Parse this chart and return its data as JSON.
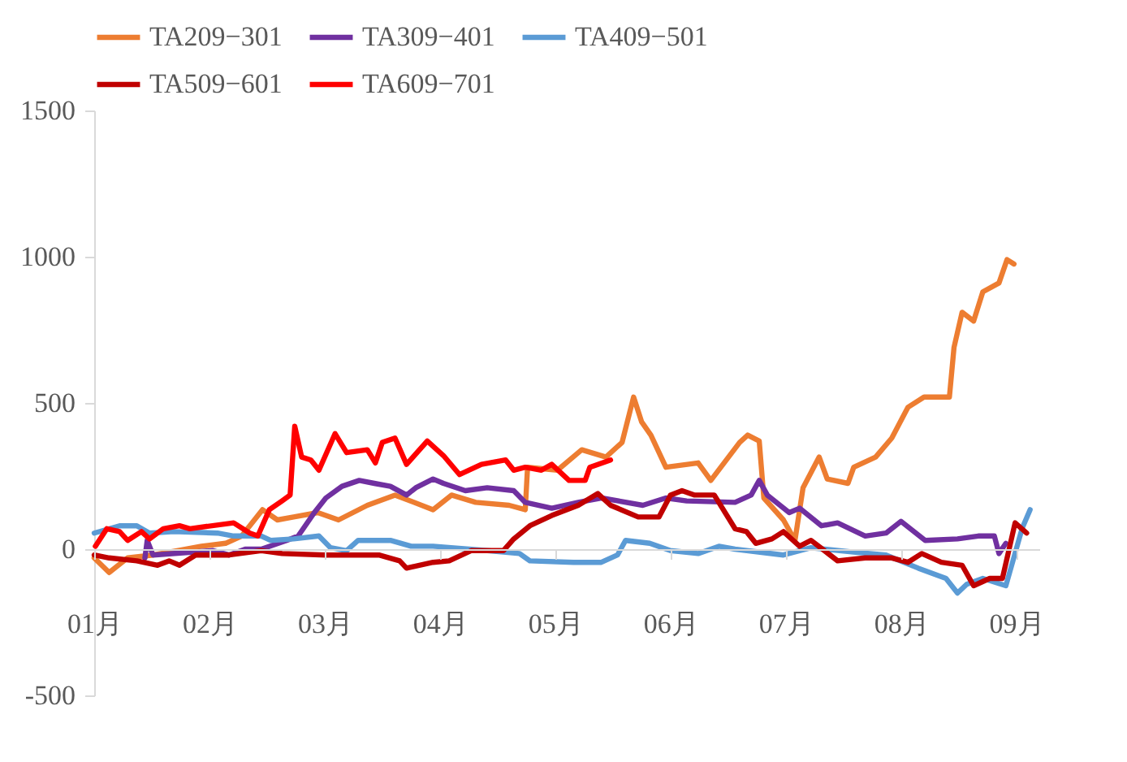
{
  "chart_data": {
    "type": "line",
    "xlim": [
      1,
      9.2
    ],
    "xticks": [
      {
        "value": 1,
        "label": "01月"
      },
      {
        "value": 2,
        "label": "02月"
      },
      {
        "value": 3,
        "label": "03月"
      },
      {
        "value": 4,
        "label": "04月"
      },
      {
        "value": 5,
        "label": "05月"
      },
      {
        "value": 6,
        "label": "06月"
      },
      {
        "value": 7,
        "label": "07月"
      },
      {
        "value": 8,
        "label": "08月"
      },
      {
        "value": 9,
        "label": "09月"
      }
    ],
    "ylim": [
      -500,
      1500
    ],
    "yticks": [
      -500,
      0,
      500,
      1000,
      1500
    ],
    "grid": false,
    "legend": "top",
    "line_style": "solid",
    "marker": "none",
    "series": [
      {
        "name": "TA209−301",
        "color": "#ed7d31",
        "x": [
          1.0,
          1.13,
          1.29,
          1.51,
          1.72,
          1.93,
          2.14,
          2.28,
          2.46,
          2.59,
          2.73,
          2.94,
          3.12,
          3.37,
          3.61,
          3.94,
          4.1,
          4.31,
          4.6,
          4.74,
          4.76,
          5.02,
          5.23,
          5.44,
          5.58,
          5.68,
          5.75,
          5.83,
          5.96,
          6.24,
          6.35,
          6.6,
          6.67,
          6.77,
          6.81,
          6.98,
          7.08,
          7.15,
          7.29,
          7.36,
          7.54,
          7.59,
          7.78,
          7.92,
          8.06,
          8.2,
          8.42,
          8.46,
          8.53,
          8.63,
          8.67,
          8.71,
          8.85,
          8.92,
          8.98
        ],
        "values": [
          -30,
          -80,
          -30,
          -20,
          -5,
          10,
          20,
          45,
          135,
          100,
          110,
          125,
          100,
          150,
          185,
          135,
          185,
          160,
          150,
          135,
          280,
          270,
          340,
          315,
          365,
          520,
          435,
          390,
          280,
          295,
          235,
          365,
          390,
          370,
          175,
          100,
          30,
          210,
          315,
          240,
          225,
          280,
          315,
          380,
          485,
          520,
          520,
          690,
          810,
          780,
          830,
          880,
          910,
          990,
          975
        ]
      },
      {
        "name": "TA309−401",
        "color": "#7030a0",
        "x": [
          1.44,
          1.46,
          1.51,
          2.03,
          2.17,
          2.31,
          2.45,
          2.67,
          2.77,
          2.91,
          3.01,
          3.15,
          3.3,
          3.43,
          3.57,
          3.71,
          3.79,
          3.94,
          4.03,
          4.22,
          4.41,
          4.64,
          4.74,
          4.97,
          5.2,
          5.4,
          5.76,
          5.96,
          6.14,
          6.56,
          6.7,
          6.77,
          6.84,
          7.03,
          7.12,
          7.31,
          7.45,
          7.69,
          7.87,
          8.0,
          8.21,
          8.49,
          8.67,
          8.81,
          8.85,
          8.91
        ],
        "values": [
          -30,
          30,
          -20,
          -5,
          -20,
          0,
          0,
          30,
          45,
          125,
          175,
          215,
          235,
          225,
          215,
          185,
          210,
          240,
          225,
          200,
          210,
          200,
          160,
          140,
          160,
          175,
          150,
          175,
          165,
          160,
          185,
          235,
          185,
          125,
          140,
          80,
          90,
          45,
          55,
          95,
          30,
          35,
          45,
          45,
          -15,
          20
        ]
      },
      {
        "name": "TA409−501",
        "color": "#5b9bd5",
        "x": [
          1.0,
          1.22,
          1.37,
          1.48,
          1.69,
          2.07,
          2.21,
          2.45,
          2.53,
          2.73,
          2.95,
          3.05,
          3.19,
          3.29,
          3.57,
          3.75,
          3.94,
          4.41,
          4.69,
          4.78,
          5.16,
          5.4,
          5.54,
          5.61,
          5.82,
          6.0,
          6.24,
          6.42,
          6.56,
          6.98,
          7.22,
          7.59,
          7.87,
          8.15,
          8.39,
          8.49,
          8.57,
          8.71,
          8.91,
          9.05,
          9.12
        ],
        "values": [
          55,
          80,
          80,
          55,
          60,
          55,
          45,
          45,
          30,
          35,
          45,
          5,
          -5,
          30,
          30,
          10,
          10,
          -5,
          -15,
          -40,
          -45,
          -45,
          -20,
          30,
          20,
          -5,
          -15,
          10,
          0,
          -20,
          5,
          -10,
          -20,
          -65,
          -100,
          -150,
          -120,
          -100,
          -125,
          70,
          135
        ]
      },
      {
        "name": "TA509−601",
        "color": "#c00000",
        "x": [
          1.0,
          1.13,
          1.37,
          1.55,
          1.65,
          1.74,
          1.88,
          2.17,
          2.45,
          2.63,
          3.01,
          3.47,
          3.65,
          3.71,
          3.94,
          4.08,
          4.27,
          4.55,
          4.64,
          4.78,
          4.97,
          5.2,
          5.37,
          5.48,
          5.72,
          5.9,
          6.0,
          6.1,
          6.21,
          6.38,
          6.56,
          6.66,
          6.74,
          6.88,
          6.98,
          7.12,
          7.22,
          7.45,
          7.69,
          7.92,
          8.06,
          8.18,
          8.35,
          8.53,
          8.63,
          8.77,
          8.88,
          8.99,
          9.09
        ],
        "values": [
          -20,
          -30,
          -40,
          -55,
          -40,
          -55,
          -20,
          -20,
          -5,
          -15,
          -20,
          -20,
          -40,
          -65,
          -45,
          -40,
          -5,
          -5,
          35,
          80,
          115,
          150,
          190,
          150,
          110,
          110,
          185,
          200,
          185,
          185,
          70,
          60,
          20,
          35,
          60,
          10,
          30,
          -40,
          -30,
          -30,
          -45,
          -15,
          -45,
          -55,
          -125,
          -100,
          -100,
          90,
          55
        ]
      },
      {
        "name": "TA609−701",
        "color": "#ff0000",
        "x": [
          1.01,
          1.11,
          1.22,
          1.29,
          1.41,
          1.48,
          1.6,
          1.74,
          1.83,
          2.21,
          2.35,
          2.42,
          2.52,
          2.63,
          2.7,
          2.74,
          2.8,
          2.88,
          2.95,
          3.09,
          3.19,
          3.37,
          3.44,
          3.5,
          3.61,
          3.71,
          3.89,
          4.03,
          4.17,
          4.36,
          4.57,
          4.64,
          4.74,
          4.88,
          4.97,
          5.12,
          5.26,
          5.3,
          5.48
        ],
        "values": [
          10,
          70,
          60,
          30,
          60,
          35,
          70,
          80,
          70,
          90,
          55,
          45,
          135,
          165,
          185,
          420,
          315,
          305,
          270,
          395,
          330,
          340,
          295,
          365,
          380,
          290,
          370,
          320,
          255,
          290,
          305,
          270,
          280,
          270,
          290,
          235,
          235,
          280,
          305
        ]
      }
    ]
  }
}
